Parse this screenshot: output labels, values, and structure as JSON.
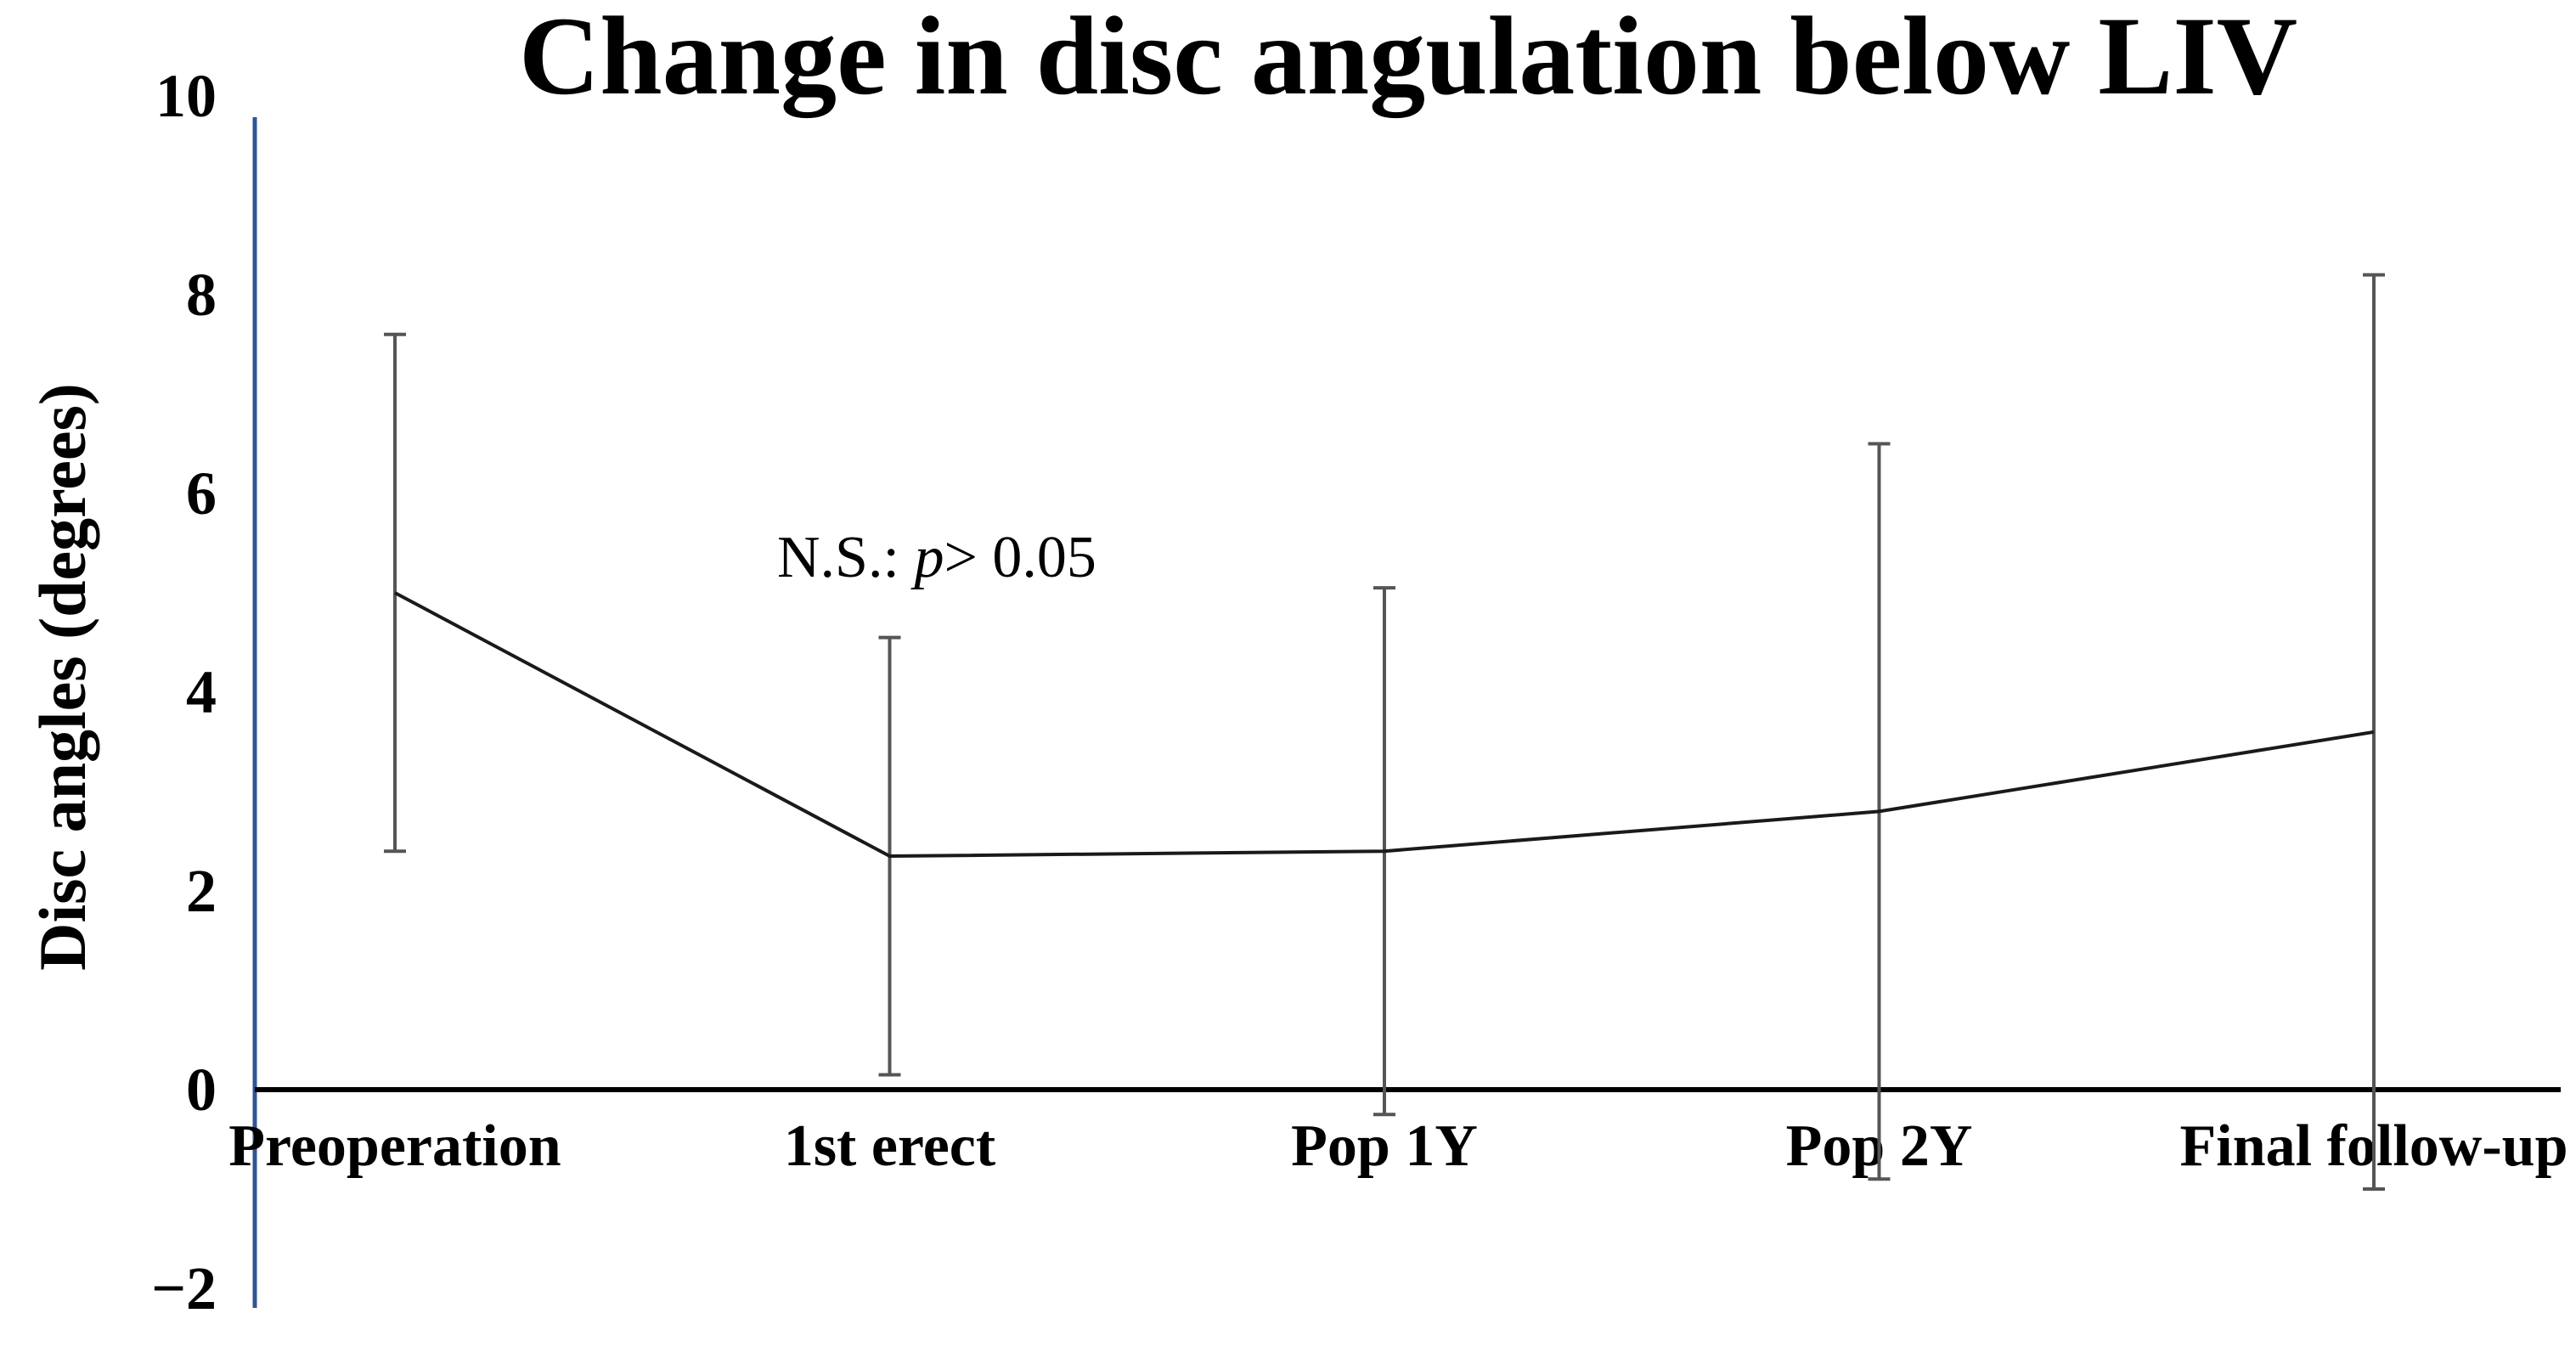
{
  "figure": {
    "title": "Change in disc angulation below LIV",
    "y_axis_title": "Disc angles (degrees)",
    "annotation": {
      "prefix": "N.S.: ",
      "italic_p": "p",
      "suffix": "> 0.05"
    }
  },
  "chart_data": {
    "type": "line",
    "title": "Change in disc angulation below LIV",
    "ylabel": "Disc angles (degrees)",
    "xlabel": "",
    "categories": [
      "Preoperation",
      "1st erect",
      "Pop 1Y",
      "Pop 2Y",
      "Final follow-up"
    ],
    "series": [
      {
        "values": [
          5.0,
          2.35,
          2.4,
          2.8,
          3.6
        ],
        "error_low": [
          2.4,
          0.15,
          -0.25,
          -0.9,
          -1.0
        ],
        "error_high": [
          7.6,
          4.55,
          5.05,
          6.5,
          8.2
        ]
      }
    ],
    "annotation_text": "N.S.: p> 0.05",
    "ylim": [
      -2,
      10
    ],
    "yticks": [
      10,
      8,
      6,
      4,
      2,
      0,
      -2
    ],
    "ytick_labels": [
      "10",
      "8",
      "6",
      "4",
      "2",
      "0",
      "−2"
    ],
    "grid": false,
    "legend": "none",
    "colors": {
      "y_axis_line": "#2F5597",
      "x_axis_line": "#000000",
      "series_line": "#1a1a1a",
      "error_bar": "#555555",
      "text": "#000000",
      "background": "#FFFFFF"
    }
  }
}
